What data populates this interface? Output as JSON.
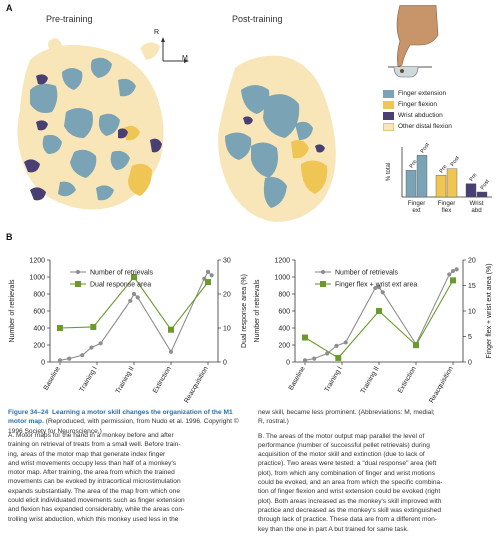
{
  "panelA": {
    "letter": "A",
    "pre_title": "Pre-training",
    "post_title": "Post-training",
    "compass": {
      "r": "R",
      "m": "M"
    },
    "legend": [
      {
        "label": "Finger extension",
        "color": "#7aa3b5"
      },
      {
        "label": "Finger flexion",
        "color": "#efc553"
      },
      {
        "label": "Wrist abduction",
        "color": "#4a3f73"
      },
      {
        "label": "Other distal flexion",
        "color": "#f8e6b8"
      }
    ]
  },
  "bar_chart": {
    "ylabel": "% total",
    "groups": [
      "Finger ext",
      "Finger flex",
      "Wrist abd"
    ],
    "group_lines": [
      [
        "Finger",
        "ext"
      ],
      [
        "Finger",
        "flex"
      ],
      [
        "Wrist",
        "abd"
      ]
    ],
    "bar_labels": [
      "Pre",
      "Post"
    ]
  },
  "panelB": {
    "letter": "B"
  },
  "chart_data": [
    {
      "type": "bar",
      "categories": [
        "Finger ext",
        "Finger flex",
        "Wrist abd"
      ],
      "series": [
        {
          "name": "Pre",
          "values": [
            16,
            13,
            8
          ]
        },
        {
          "name": "Post",
          "values": [
            25,
            17,
            3
          ]
        }
      ],
      "ylabel": "% total",
      "colors": [
        "#7aa3b5",
        "#efc553",
        "#4a3f73"
      ]
    },
    {
      "type": "line",
      "categories": [
        "Baseline",
        "Training I",
        "Training II",
        "Extinction",
        "Reacquisition"
      ],
      "yleft": {
        "label": "Number of retrievals",
        "ticks": [
          0,
          200,
          400,
          600,
          800,
          1000,
          1200
        ],
        "lim": [
          0,
          1200
        ]
      },
      "yright": {
        "label": "Dual response area (%)",
        "ticks": [
          0,
          10,
          20,
          30
        ],
        "lim": [
          0,
          30
        ]
      },
      "series": [
        {
          "name": "Number of retrievals",
          "axis": "left",
          "color": "#8e8e8e",
          "points": [
            [
              0.0,
              20
            ],
            [
              0.25,
              40
            ],
            [
              0.6,
              80
            ],
            [
              0.85,
              170
            ],
            [
              1.1,
              220
            ],
            [
              1.9,
              720
            ],
            [
              2.0,
              800
            ],
            [
              2.1,
              760
            ],
            [
              3.0,
              120
            ],
            [
              3.9,
              980
            ],
            [
              4.0,
              1060
            ],
            [
              4.1,
              1020
            ]
          ]
        },
        {
          "name": "Dual response area",
          "axis": "right",
          "color": "#6b9a2c",
          "points": [
            [
              0.0,
              10
            ],
            [
              0.9,
              10.3
            ],
            [
              2.0,
              25
            ],
            [
              3.0,
              9.5
            ],
            [
              4.0,
              23.5
            ]
          ]
        }
      ]
    },
    {
      "type": "line",
      "categories": [
        "Baseline",
        "Training I",
        "Training II",
        "Extinction",
        "Reacquisition"
      ],
      "yleft": {
        "label": "Number of retrievals",
        "ticks": [
          0,
          200,
          400,
          600,
          800,
          1000,
          1200
        ],
        "lim": [
          0,
          1200
        ]
      },
      "yright": {
        "label": "Finger flex + wrist ext area (%)",
        "ticks": [
          0,
          5,
          10,
          15,
          20
        ],
        "lim": [
          0,
          20
        ]
      },
      "series": [
        {
          "name": "Number of retrievals",
          "axis": "left",
          "color": "#8e8e8e",
          "points": [
            [
              0.0,
              20
            ],
            [
              0.25,
              40
            ],
            [
              0.6,
              100
            ],
            [
              0.85,
              190
            ],
            [
              1.1,
              230
            ],
            [
              1.9,
              870
            ],
            [
              2.0,
              880
            ],
            [
              2.1,
              820
            ],
            [
              3.0,
              210
            ],
            [
              3.9,
              1030
            ],
            [
              4.0,
              1070
            ],
            [
              4.1,
              1090
            ]
          ]
        },
        {
          "name": "Finger flex + wrist ext area",
          "axis": "right",
          "color": "#6b9a2c",
          "points": [
            [
              0.0,
              4.8
            ],
            [
              0.9,
              0.8
            ],
            [
              2.0,
              10
            ],
            [
              3.0,
              3.3
            ],
            [
              4.0,
              16
            ]
          ]
        }
      ]
    }
  ],
  "caption": {
    "figure_label": "Figure 34–24",
    "figure_title": "Learning a motor skill changes the organization of the M1 motor map.",
    "figure_note": "(Reproduced, with permission, from Nudo et al. 1996. Copyright © 1996 Society for Neuroscience.)",
    "a_lines": [
      "A. Motor maps for the hand in a monkey before and after",
      "training on retrieval of treats from a small well. Before train-",
      "ing, areas of the motor map that generate index finger",
      "and wrist movements occupy less than half of a monkey's",
      "motor map. After training, the area from which the trained",
      "movements can be evoked by intracortical microstimulation",
      "expands substantially. The area of the map from which one",
      "could elicit individuated movements such as finger extension",
      "and flexion has expanded considerably, while the areas con-",
      "trolling wrist abduction, which this monkey used less in the"
    ],
    "right_lines": [
      "new skill, became less prominent. (Abbreviations: M, medial;",
      "R, rostral.)",
      "",
      "B. The areas of the motor output map parallel the level of",
      "performance (number of successful pellet retrievals) during",
      "acquisition of the motor skill and extinction (due to lack of",
      "practice). Two areas were tested: a \"dual response\" area (left",
      "plot), from which any combination of finger and wrist motions",
      "could be evoked, and an area from which the specific combina-",
      "tion of finger flexion and wrist extension could be evoked (right",
      "plot). Both areas increased as the monkey's skill improved with",
      "practice and decreased as the monkey's skill was extinguished",
      "through lack of practice. These data are from a different mon-",
      "key than the one in part A but trained for same task."
    ]
  }
}
